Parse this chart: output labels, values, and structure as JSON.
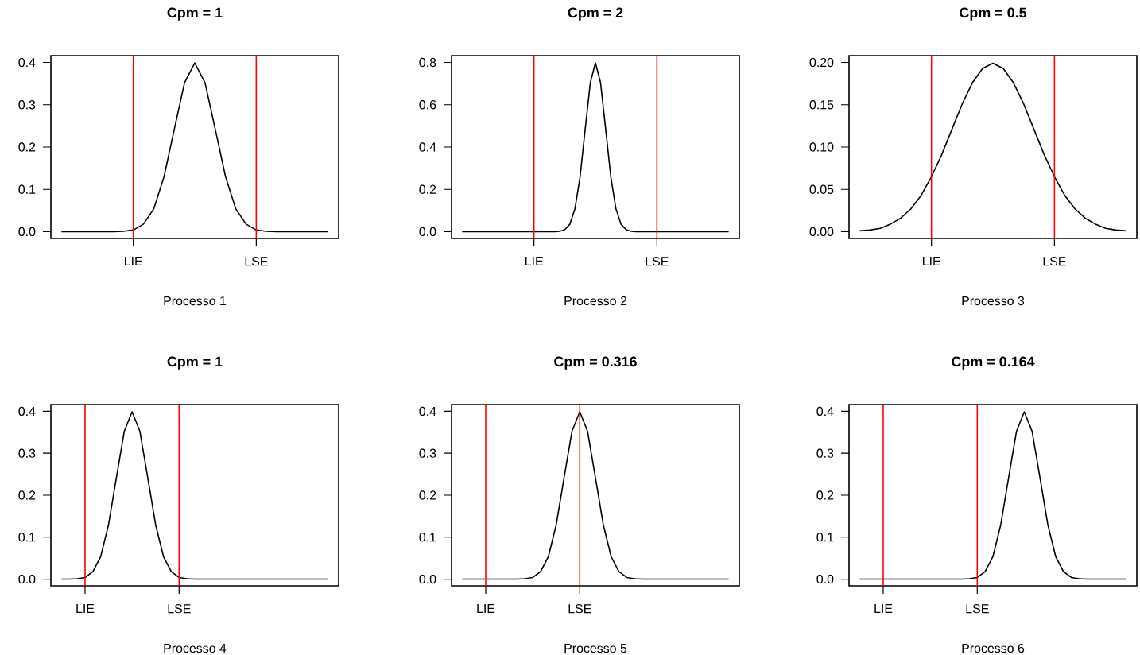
{
  "chart_data": [
    {
      "type": "line",
      "title": "Cpm = 1",
      "xlabel": "Processo 1",
      "color": "#000000",
      "ylim": [
        -0.016,
        0.416
      ],
      "categories": [
        null,
        null,
        null,
        null,
        null,
        null,
        null,
        "LIE",
        null,
        null,
        null,
        null,
        null,
        null,
        null,
        null,
        null,
        null,
        null,
        "LSE",
        null,
        null,
        null,
        null,
        null,
        null,
        null
      ],
      "yticks": [
        {
          "value": 0,
          "label": "0.0"
        },
        0.1,
        0.2,
        0.3,
        0.4
      ],
      "ref_lines": [
        {
          "axis": "x",
          "value": "LIE",
          "color": "#ff0000"
        },
        {
          "axis": "x",
          "value": "LSE",
          "color": "#ff0000"
        }
      ],
      "values": [
        0,
        0,
        0,
        0,
        0,
        0,
        0.001,
        0.004,
        0.018,
        0.054,
        0.13,
        0.242,
        0.352,
        0.399,
        0.352,
        0.242,
        0.13,
        0.054,
        0.018,
        0.004,
        0.001,
        0,
        0,
        0,
        0,
        0,
        0
      ]
    },
    {
      "type": "line",
      "title": "Cpm = 2",
      "xlabel": "Processo 2",
      "color": "#000000",
      "ylim": [
        -0.032,
        0.832
      ],
      "categories": [
        null,
        null,
        null,
        null,
        null,
        null,
        null,
        null,
        null,
        null,
        null,
        null,
        null,
        null,
        "LIE",
        null,
        null,
        null,
        null,
        null,
        null,
        null,
        null,
        null,
        null,
        null,
        null,
        null,
        null,
        null,
        null,
        null,
        null,
        null,
        null,
        null,
        null,
        null,
        "LSE",
        null,
        null,
        null,
        null,
        null,
        null,
        null,
        null,
        null,
        null,
        null,
        null,
        null,
        null
      ],
      "yticks": [
        {
          "value": 0,
          "label": "0.0"
        },
        0.2,
        0.4,
        0.6,
        0.8
      ],
      "ref_lines": [
        {
          "axis": "x",
          "value": "LIE",
          "color": "#ff0000"
        },
        {
          "axis": "x",
          "value": "LSE",
          "color": "#ff0000"
        }
      ],
      "values": [
        0,
        0,
        0,
        0,
        0,
        0,
        0,
        0,
        0,
        0,
        0,
        0,
        0,
        0,
        0,
        0,
        0,
        0,
        0,
        0.002,
        0.009,
        0.035,
        0.108,
        0.259,
        0.484,
        0.704,
        0.798,
        0.704,
        0.484,
        0.259,
        0.108,
        0.035,
        0.009,
        0.002,
        0,
        0,
        0,
        0,
        0,
        0,
        0,
        0,
        0,
        0,
        0,
        0,
        0,
        0,
        0,
        0,
        0,
        0,
        0
      ]
    },
    {
      "type": "line",
      "title": "Cpm = 0.5",
      "xlabel": "Processo 3",
      "color": "#000000",
      "ylim": [
        -0.008,
        0.208
      ],
      "categories": [
        null,
        null,
        null,
        null,
        null,
        null,
        null,
        "LIE",
        null,
        null,
        null,
        null,
        null,
        null,
        null,
        null,
        null,
        null,
        null,
        "LSE",
        null,
        null,
        null,
        null,
        null,
        null,
        null
      ],
      "yticks": [
        {
          "value": 0,
          "label": "0.00"
        },
        {
          "value": 0.05,
          "label": "0.05"
        },
        {
          "value": 0.1,
          "label": "0.10"
        },
        {
          "value": 0.15,
          "label": "0.15"
        },
        {
          "value": 0.2,
          "label": "0.20"
        }
      ],
      "ref_lines": [
        {
          "axis": "x",
          "value": "LIE",
          "color": "#ff0000"
        },
        {
          "axis": "x",
          "value": "LSE",
          "color": "#ff0000"
        }
      ],
      "values": [
        0.001,
        0.002,
        0.004,
        0.009,
        0.016,
        0.027,
        0.043,
        0.065,
        0.091,
        0.121,
        0.151,
        0.176,
        0.193,
        0.199,
        0.193,
        0.176,
        0.151,
        0.121,
        0.091,
        0.065,
        0.043,
        0.027,
        0.016,
        0.009,
        0.004,
        0.002,
        0.001
      ]
    },
    {
      "type": "line",
      "title": "Cpm = 1",
      "xlabel": "Processo 4",
      "color": "#000000",
      "ylim": [
        -0.016,
        0.416
      ],
      "categories": [
        null,
        null,
        null,
        "LIE",
        null,
        null,
        null,
        null,
        null,
        null,
        null,
        null,
        null,
        null,
        null,
        "LSE",
        null,
        null,
        null,
        null,
        null,
        null,
        null,
        null,
        null,
        null,
        null,
        null,
        null,
        null,
        null,
        null,
        null,
        null,
        null
      ],
      "yticks": [
        {
          "value": 0,
          "label": "0.0"
        },
        0.1,
        0.2,
        0.3,
        0.4
      ],
      "ref_lines": [
        {
          "axis": "x",
          "value": "LIE",
          "color": "#ff0000"
        },
        {
          "axis": "x",
          "value": "LSE",
          "color": "#ff0000"
        }
      ],
      "values": [
        0,
        0,
        0.001,
        0.004,
        0.018,
        0.054,
        0.13,
        0.242,
        0.352,
        0.399,
        0.352,
        0.242,
        0.13,
        0.054,
        0.018,
        0.004,
        0.001,
        0,
        0,
        0,
        0,
        0,
        0,
        0,
        0,
        0,
        0,
        0,
        0,
        0,
        0,
        0,
        0,
        0,
        0
      ]
    },
    {
      "type": "line",
      "title": "Cpm = 0.316",
      "xlabel": "Processo 5",
      "color": "#000000",
      "ylim": [
        -0.016,
        0.416
      ],
      "categories": [
        null,
        null,
        null,
        "LIE",
        null,
        null,
        null,
        null,
        null,
        null,
        null,
        null,
        null,
        null,
        null,
        "LSE",
        null,
        null,
        null,
        null,
        null,
        null,
        null,
        null,
        null,
        null,
        null,
        null,
        null,
        null,
        null,
        null,
        null,
        null,
        null
      ],
      "yticks": [
        {
          "value": 0,
          "label": "0.0"
        },
        0.1,
        0.2,
        0.3,
        0.4
      ],
      "ref_lines": [
        {
          "axis": "x",
          "value": "LIE",
          "color": "#ff0000"
        },
        {
          "axis": "x",
          "value": "LSE",
          "color": "#ff0000"
        }
      ],
      "values": [
        0,
        0,
        0,
        0,
        0,
        0,
        0,
        0,
        0.001,
        0.004,
        0.018,
        0.054,
        0.13,
        0.242,
        0.352,
        0.399,
        0.352,
        0.242,
        0.13,
        0.054,
        0.018,
        0.004,
        0.001,
        0,
        0,
        0,
        0,
        0,
        0,
        0,
        0,
        0,
        0,
        0,
        0
      ]
    },
    {
      "type": "line",
      "title": "Cpm = 0.164",
      "xlabel": "Processo 6",
      "color": "#000000",
      "ylim": [
        -0.016,
        0.416
      ],
      "categories": [
        null,
        null,
        null,
        "LIE",
        null,
        null,
        null,
        null,
        null,
        null,
        null,
        null,
        null,
        null,
        null,
        "LSE",
        null,
        null,
        null,
        null,
        null,
        null,
        null,
        null,
        null,
        null,
        null,
        null,
        null,
        null,
        null,
        null,
        null,
        null,
        null
      ],
      "yticks": [
        {
          "value": 0,
          "label": "0.0"
        },
        0.1,
        0.2,
        0.3,
        0.4
      ],
      "ref_lines": [
        {
          "axis": "x",
          "value": "LIE",
          "color": "#ff0000"
        },
        {
          "axis": "x",
          "value": "LSE",
          "color": "#ff0000"
        }
      ],
      "values": [
        0,
        0,
        0,
        0,
        0,
        0,
        0,
        0,
        0,
        0,
        0,
        0,
        0,
        0,
        0.001,
        0.004,
        0.018,
        0.054,
        0.13,
        0.242,
        0.352,
        0.399,
        0.352,
        0.242,
        0.13,
        0.054,
        0.018,
        0.004,
        0.001,
        0,
        0,
        0,
        0,
        0,
        0
      ]
    }
  ]
}
